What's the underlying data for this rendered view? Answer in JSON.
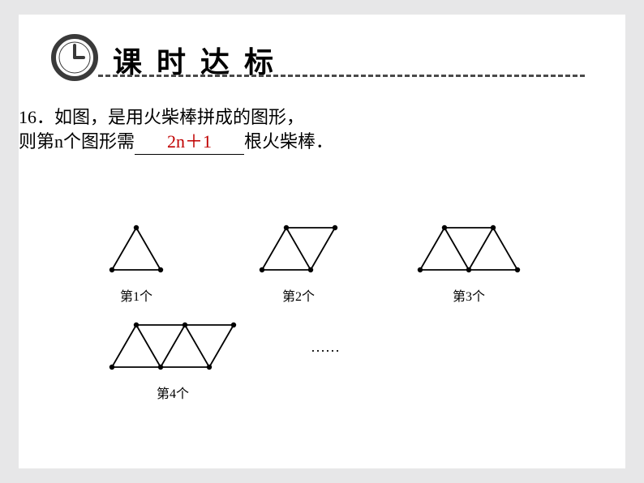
{
  "header": {
    "title": "课时达标"
  },
  "question": {
    "line1": "16．如图，是用火柴棒拼成的图形，",
    "line2_a": "则第n个图形需",
    "answer": "2n＋1",
    "line2_b": "根火柴棒．"
  },
  "figures": {
    "f1": {
      "label": "第1个",
      "triangles": 1
    },
    "f2": {
      "label": "第2个",
      "triangles": 2
    },
    "f3": {
      "label": "第3个",
      "triangles": 3
    },
    "f4": {
      "label": "第4个",
      "triangles": 4
    },
    "ellipsis": "……"
  },
  "style": {
    "background_color": "#e7e7e8",
    "slide_color": "#ffffff",
    "text_color": "#000000",
    "answer_color": "#c00000",
    "dash_color": "#4a4a4a",
    "node_radius": 3.2,
    "stroke_width": 1.8,
    "triangle_base": 60,
    "triangle_height": 52
  }
}
